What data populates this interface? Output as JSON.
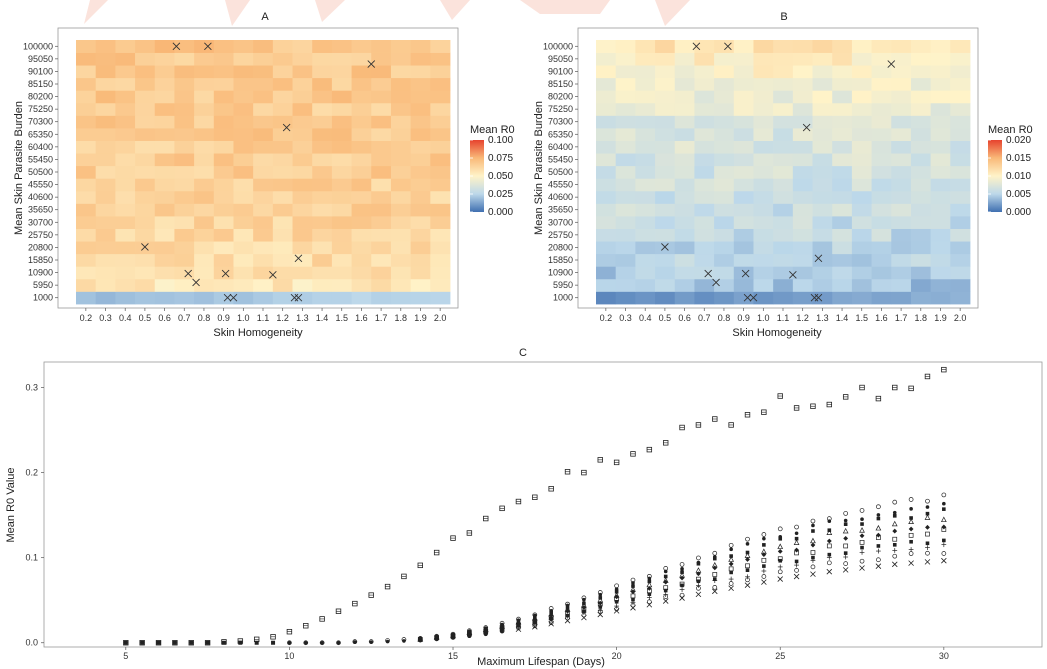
{
  "chart_data": [
    {
      "panel": "A",
      "type": "heatmap",
      "title": "A",
      "xlabel": "Skin Homogeneity",
      "ylabel": "Mean Skin Parasite Burden",
      "x_ticks": [
        "0.2",
        "0.3",
        "0.4",
        "0.5",
        "0.6",
        "0.7",
        "0.8",
        "0.9",
        "1.0",
        "1.1",
        "1.2",
        "1.3",
        "1.4",
        "1.5",
        "1.6",
        "1.7",
        "1.8",
        "1.9",
        "2.0"
      ],
      "y_ticks": [
        "1000",
        "5950",
        "10900",
        "15850",
        "20800",
        "25750",
        "30700",
        "35650",
        "40600",
        "45550",
        "50500",
        "55450",
        "60400",
        "65350",
        "70300",
        "75250",
        "80200",
        "85150",
        "90100",
        "95050",
        "100000"
      ],
      "legend": {
        "title": "Mean R0",
        "labels": [
          "0.000",
          "0.025",
          "0.050",
          "0.075",
          "0.100"
        ],
        "min": 0,
        "max": 0.1
      },
      "row_means": [
        0.018,
        0.055,
        0.058,
        0.06,
        0.061,
        0.062,
        0.063,
        0.064,
        0.064,
        0.065,
        0.066,
        0.066,
        0.066,
        0.067,
        0.067,
        0.067,
        0.068,
        0.068,
        0.068,
        0.068,
        0.069
      ],
      "colors": [
        "#3f6fb0",
        "#bcd8ea",
        "#fff3c8",
        "#f9b978",
        "#e6432e"
      ],
      "markers": [
        [
          0.66,
          100000
        ],
        [
          0.82,
          100000
        ],
        [
          1.65,
          93000
        ],
        [
          1.22,
          68000
        ],
        [
          0.5,
          21000
        ],
        [
          1.28,
          16500
        ],
        [
          0.72,
          10500
        ],
        [
          0.91,
          10500
        ],
        [
          1.15,
          10000
        ],
        [
          0.76,
          7000
        ],
        [
          0.92,
          1000
        ],
        [
          0.95,
          1000
        ],
        [
          1.26,
          1000
        ],
        [
          1.28,
          1000
        ]
      ]
    },
    {
      "panel": "B",
      "type": "heatmap",
      "title": "B",
      "xlabel": "Skin Homogeneity",
      "ylabel": "Mean Skin Parasite Burden",
      "x_ticks": [
        "0.2",
        "0.3",
        "0.4",
        "0.5",
        "0.6",
        "0.7",
        "0.8",
        "0.9",
        "1.0",
        "1.1",
        "1.2",
        "1.3",
        "1.4",
        "1.5",
        "1.6",
        "1.7",
        "1.8",
        "1.9",
        "2.0"
      ],
      "y_ticks": [
        "1000",
        "5950",
        "10900",
        "15850",
        "20800",
        "25750",
        "30700",
        "35650",
        "40600",
        "45550",
        "50500",
        "55450",
        "60400",
        "65350",
        "70300",
        "75250",
        "80200",
        "85150",
        "90100",
        "95050",
        "100000"
      ],
      "legend": {
        "title": "Mean R0",
        "labels": [
          "0.000",
          "0.005",
          "0.010",
          "0.015",
          "0.020"
        ],
        "min": 0,
        "max": 0.02
      },
      "row_means": [
        0.0015,
        0.004,
        0.0045,
        0.005,
        0.0052,
        0.0055,
        0.0058,
        0.006,
        0.0062,
        0.0064,
        0.0066,
        0.0068,
        0.007,
        0.0072,
        0.0074,
        0.0082,
        0.0088,
        0.0092,
        0.0098,
        0.0104,
        0.0112
      ],
      "colors": [
        "#3f6fb0",
        "#bcd8ea",
        "#fff3c8",
        "#f9b978",
        "#e6432e"
      ],
      "markers": [
        [
          0.66,
          100000
        ],
        [
          0.82,
          100000
        ],
        [
          1.65,
          93000
        ],
        [
          1.22,
          68000
        ],
        [
          0.5,
          21000
        ],
        [
          1.28,
          16500
        ],
        [
          0.72,
          10500
        ],
        [
          0.91,
          10500
        ],
        [
          1.15,
          10000
        ],
        [
          0.76,
          7000
        ],
        [
          0.92,
          1000
        ],
        [
          0.95,
          1000
        ],
        [
          1.26,
          1000
        ],
        [
          1.28,
          1000
        ]
      ]
    },
    {
      "panel": "C",
      "type": "scatter",
      "title": "C",
      "xlabel": "Maximum Lifespan (Days)",
      "ylabel": "Mean R0 Value",
      "xlim": [
        2.5,
        33
      ],
      "ylim": [
        -0.005,
        0.33
      ],
      "x_ticks": [
        5,
        10,
        15,
        20,
        25,
        30
      ],
      "y_ticks": [
        "0.0",
        "0.1",
        "0.2",
        "0.3"
      ],
      "upper_series": {
        "marker": "boxed-square",
        "x": [
          5,
          5.5,
          6,
          6.5,
          7,
          7.5,
          8,
          8.5,
          9,
          9.5,
          10,
          10.5,
          11,
          11.5,
          12,
          12.5,
          13,
          13.5,
          14,
          14.5,
          15,
          15.5,
          16,
          16.5,
          17,
          17.5,
          18,
          18.5,
          19,
          19.5,
          20,
          20.5,
          21,
          21.5,
          22,
          22.5,
          23,
          23.5,
          24,
          24.5,
          25,
          25.5,
          26,
          26.5,
          27,
          27.5,
          28,
          28.5,
          29,
          29.5,
          30
        ],
        "y": [
          0,
          0,
          0,
          0,
          0,
          0,
          0.001,
          0.002,
          0.004,
          0.007,
          0.013,
          0.02,
          0.028,
          0.037,
          0.046,
          0.056,
          0.066,
          0.078,
          0.091,
          0.106,
          0.123,
          0.129,
          0.146,
          0.158,
          0.166,
          0.171,
          0.181,
          0.201,
          0.2,
          0.215,
          0.212,
          0.222,
          0.227,
          0.235,
          0.253,
          0.256,
          0.263,
          0.256,
          0.268,
          0.271,
          0.29,
          0.276,
          0.278,
          0.28,
          0.289,
          0.3,
          0.287,
          0.3,
          0.299,
          0.313,
          0.321
        ]
      },
      "lower_cluster": {
        "x_start": 10,
        "x_step": 0.5,
        "x_end": 30,
        "centre_y": [
          0,
          0,
          0,
          0,
          0.001,
          0.001,
          0.002,
          0.003,
          0.004,
          0.006,
          0.008,
          0.011,
          0.014,
          0.018,
          0.022,
          0.026,
          0.031,
          0.036,
          0.041,
          0.046,
          0.052,
          0.057,
          0.062,
          0.068,
          0.073,
          0.079,
          0.084,
          0.089,
          0.094,
          0.099,
          0.104,
          0.108,
          0.112,
          0.116,
          0.119,
          0.122,
          0.125,
          0.128,
          0.13,
          0.132,
          0.134
        ],
        "spread": 0.14
      }
    }
  ]
}
